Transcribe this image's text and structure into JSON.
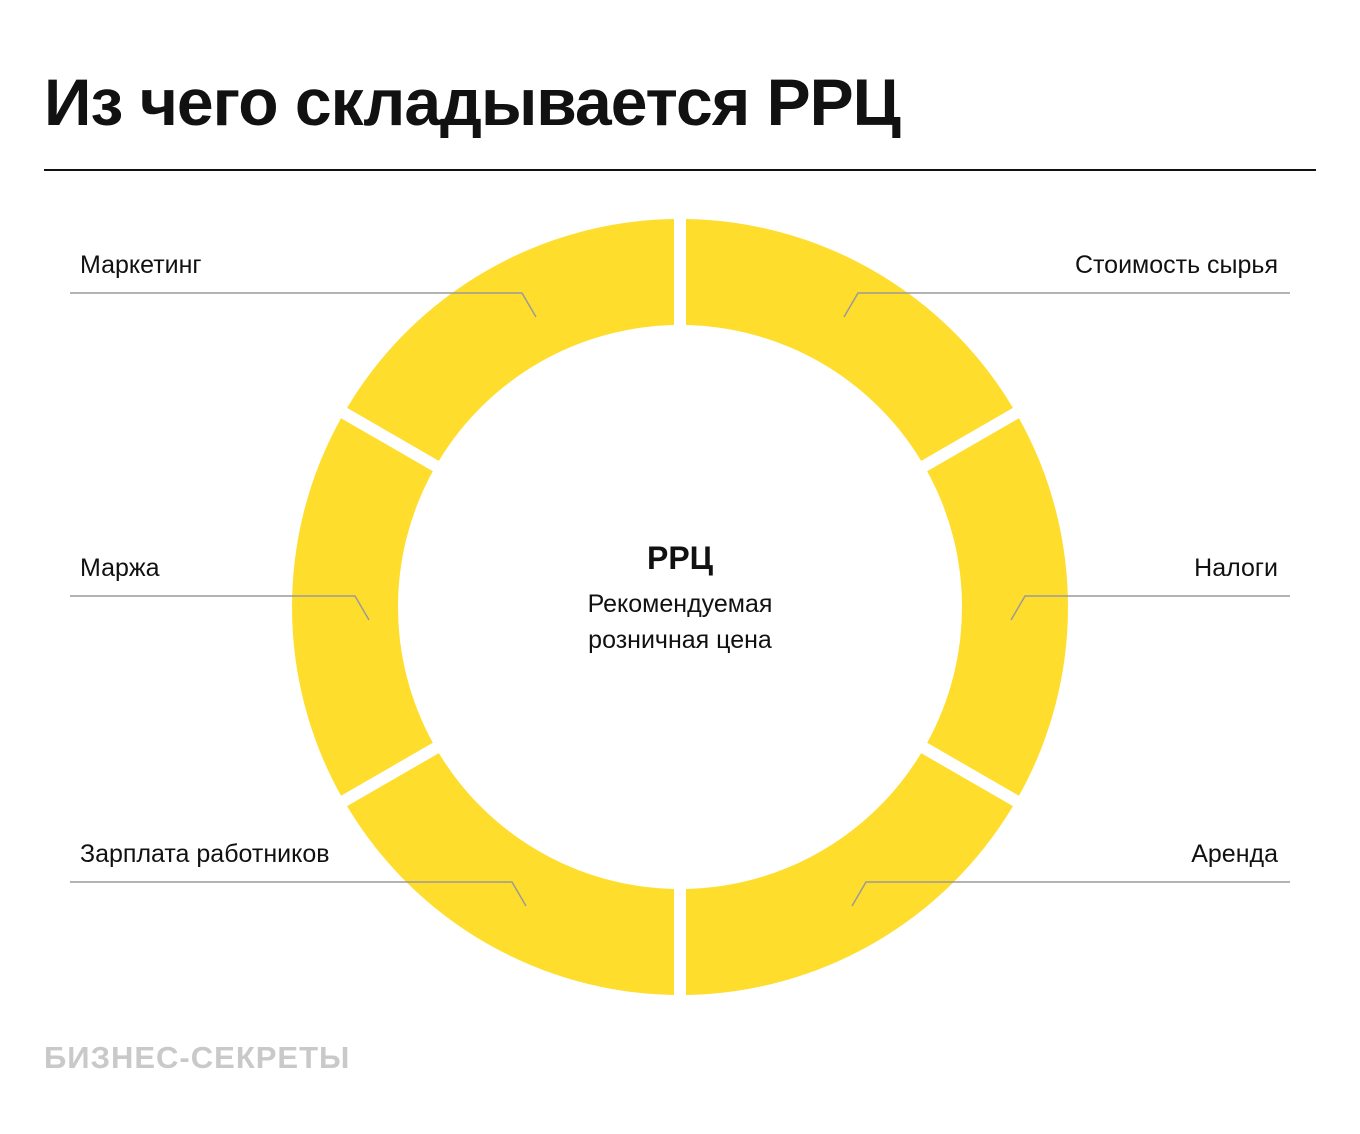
{
  "title": "Из чего складывается РРЦ",
  "center": {
    "title": "РРЦ",
    "subtitle_line1": "Рекомендуемая",
    "subtitle_line2": "розничная цена"
  },
  "components": {
    "right_top": "Стоимость сырья",
    "right_middle": "Налоги",
    "right_bottom": "Аренда",
    "left_bottom": "Зарплата работников",
    "left_middle": "Маржа",
    "left_top": "Маркетинг"
  },
  "segment_order": [
    "right_top",
    "right_middle",
    "right_bottom",
    "left_bottom",
    "left_middle",
    "left_top"
  ],
  "brand": "БИЗНЕС-СЕКРЕТЫ",
  "colors": {
    "ring": "#FFDD2D",
    "leader_line": "#9a9a9a",
    "text": "#111111",
    "brand": "#c9c9c9"
  }
}
